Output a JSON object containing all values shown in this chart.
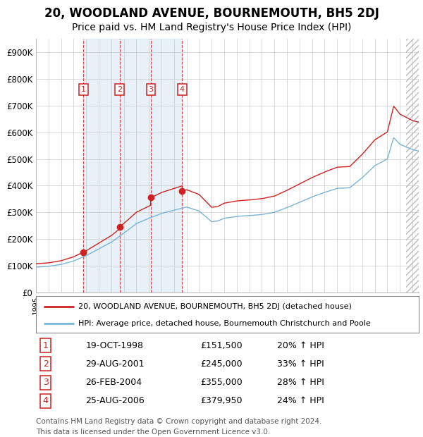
{
  "title": "20, WOODLAND AVENUE, BOURNEMOUTH, BH5 2DJ",
  "subtitle": "Price paid vs. HM Land Registry's House Price Index (HPI)",
  "title_fontsize": 12,
  "subtitle_fontsize": 10,
  "ylim": [
    0,
    950000
  ],
  "yticks": [
    0,
    100000,
    200000,
    300000,
    400000,
    500000,
    600000,
    700000,
    800000,
    900000
  ],
  "ytick_labels": [
    "£0",
    "£100K",
    "£200K",
    "£300K",
    "£400K",
    "£500K",
    "£600K",
    "£700K",
    "£800K",
    "£900K"
  ],
  "hpi_color": "#7ab4d8",
  "price_color": "#cc2222",
  "background_color": "#ffffff",
  "grid_color": "#cccccc",
  "transactions": [
    {
      "id": 1,
      "date_label": "19-OCT-1998",
      "price": 151500,
      "pct": "20%",
      "x_year": 1998.79
    },
    {
      "id": 2,
      "date_label": "29-AUG-2001",
      "price": 245000,
      "pct": "33%",
      "x_year": 2001.66
    },
    {
      "id": 3,
      "date_label": "26-FEB-2004",
      "price": 355000,
      "pct": "28%",
      "x_year": 2004.15
    },
    {
      "id": 4,
      "date_label": "25-AUG-2006",
      "price": 379950,
      "pct": "24%",
      "x_year": 2006.65
    }
  ],
  "legend_line1": "20, WOODLAND AVENUE, BOURNEMOUTH, BH5 2DJ (detached house)",
  "legend_line2": "HPI: Average price, detached house, Bournemouth Christchurch and Poole",
  "footer1": "Contains HM Land Registry data © Crown copyright and database right 2024.",
  "footer2": "This data is licensed under the Open Government Licence v3.0.",
  "xmin": 1995.0,
  "xmax": 2025.5,
  "span_color": "#d0e4f0",
  "span_alpha": 0.5
}
